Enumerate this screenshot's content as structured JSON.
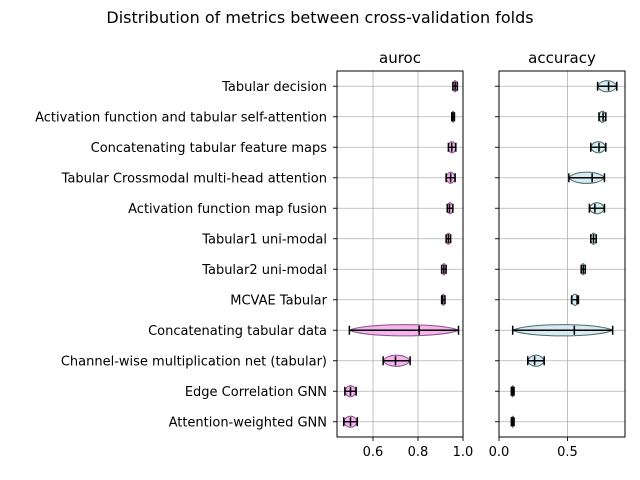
{
  "chart_data": {
    "type": "violin",
    "title": "Distribution of metrics between cross-validation folds",
    "categories": [
      "Tabular decision",
      "Activation function and tabular self-attention",
      "Concatenating tabular feature maps",
      "Tabular Crossmodal multi-head attention",
      "Activation function map fusion",
      "Tabular1 uni-modal",
      "Tabular2 uni-modal",
      "MCVAE Tabular",
      "Concatenating tabular data",
      "Channel-wise multiplication net (tabular)",
      "Edge Correlation GNN",
      "Attention-weighted GNN"
    ],
    "panels": [
      {
        "title": "auroc",
        "xlim": [
          0.44,
          1.0
        ],
        "xticks": [
          0.6,
          0.8,
          1.0
        ],
        "xtick_labels": [
          "0.6",
          "0.8",
          "1.0"
        ],
        "color": "#f2a9ea",
        "edge": "#8a4f8a",
        "grid": true,
        "stats": [
          {
            "min": 0.955,
            "median": 0.965,
            "max": 0.975
          },
          {
            "min": 0.95,
            "median": 0.955,
            "max": 0.962
          },
          {
            "min": 0.935,
            "median": 0.95,
            "max": 0.968
          },
          {
            "min": 0.925,
            "median": 0.945,
            "max": 0.965
          },
          {
            "min": 0.93,
            "median": 0.94,
            "max": 0.955
          },
          {
            "min": 0.925,
            "median": 0.935,
            "max": 0.945
          },
          {
            "min": 0.905,
            "median": 0.915,
            "max": 0.925
          },
          {
            "min": 0.905,
            "median": 0.91,
            "max": 0.92
          },
          {
            "min": 0.495,
            "median": 0.805,
            "max": 0.98
          },
          {
            "min": 0.645,
            "median": 0.7,
            "max": 0.765
          },
          {
            "min": 0.475,
            "median": 0.5,
            "max": 0.525
          },
          {
            "min": 0.47,
            "median": 0.5,
            "max": 0.53
          }
        ]
      },
      {
        "title": "accuracy",
        "xlim": [
          0.0,
          0.92
        ],
        "xticks": [
          0.0,
          0.5
        ],
        "xtick_labels": [
          "0.0",
          "0.5"
        ],
        "color": "#cfe9ee",
        "edge": "#4a6a70",
        "grid": true,
        "stats": [
          {
            "min": 0.72,
            "median": 0.8,
            "max": 0.86
          },
          {
            "min": 0.73,
            "median": 0.76,
            "max": 0.78
          },
          {
            "min": 0.67,
            "median": 0.73,
            "max": 0.78
          },
          {
            "min": 0.51,
            "median": 0.68,
            "max": 0.77
          },
          {
            "min": 0.66,
            "median": 0.7,
            "max": 0.77
          },
          {
            "min": 0.67,
            "median": 0.69,
            "max": 0.71
          },
          {
            "min": 0.6,
            "median": 0.615,
            "max": 0.63
          },
          {
            "min": 0.53,
            "median": 0.57,
            "max": 0.58
          },
          {
            "min": 0.1,
            "median": 0.55,
            "max": 0.83
          },
          {
            "min": 0.21,
            "median": 0.26,
            "max": 0.33
          },
          {
            "min": 0.09,
            "median": 0.1,
            "max": 0.11
          },
          {
            "min": 0.09,
            "median": 0.1,
            "max": 0.11
          }
        ]
      }
    ]
  }
}
